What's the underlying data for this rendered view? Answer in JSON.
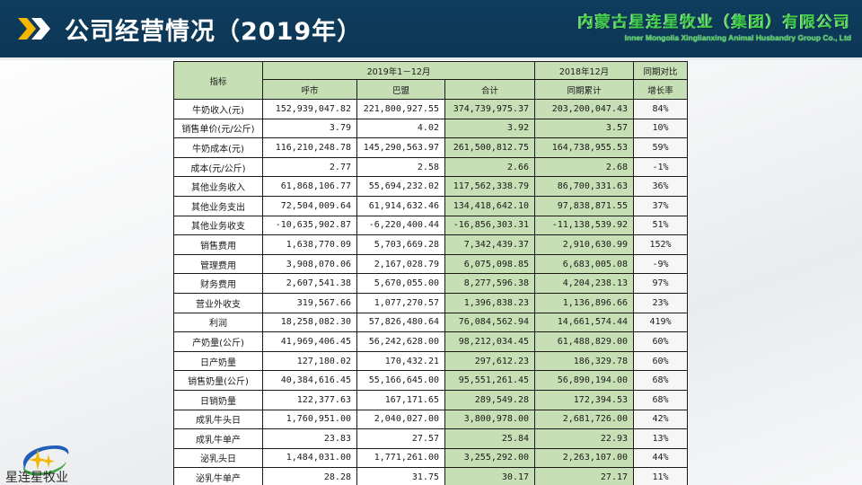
{
  "header": {
    "title": "公司经营情况（2019年）",
    "company_cn": "内蒙古星连星牧业（集团）有限公司",
    "company_en": "Inner Mongolia Xinglianxing Animal Husbandry Group Co., Ltd",
    "colors": {
      "background": "#0f3d5e",
      "accent_yellow": "#f5b800",
      "company_green": "#3ecb4a"
    }
  },
  "table": {
    "header_top": {
      "indicator": "指标",
      "period_2019": "2019年1－12月",
      "period_2018": "2018年12月",
      "yoy": "同期对比"
    },
    "header_sub": {
      "huhehaote": "呼市",
      "bameng": "巴盟",
      "total": "合计",
      "prior_cumulative": "同期累计",
      "growth_rate": "增长率"
    },
    "rows": [
      {
        "label": "牛奶收入(元)",
        "huhehaote": "152,939,047.82",
        "bameng": "221,800,927.55",
        "total": "374,739,975.37",
        "prior": "203,200,047.43",
        "growth": "84%"
      },
      {
        "label": "销售单价(元/公斤)",
        "huhehaote": "3.79",
        "bameng": "4.02",
        "total": "3.92",
        "prior": "3.57",
        "growth": "10%"
      },
      {
        "label": "牛奶成本(元)",
        "huhehaote": "116,210,248.78",
        "bameng": "145,290,563.97",
        "total": "261,500,812.75",
        "prior": "164,738,955.53",
        "growth": "59%"
      },
      {
        "label": "成本(元/公斤)",
        "huhehaote": "2.77",
        "bameng": "2.58",
        "total": "2.66",
        "prior": "2.68",
        "growth": "-1%"
      },
      {
        "label": "其他业务收入",
        "huhehaote": "61,868,106.77",
        "bameng": "55,694,232.02",
        "total": "117,562,338.79",
        "prior": "86,700,331.63",
        "growth": "36%"
      },
      {
        "label": "其他业务支出",
        "huhehaote": "72,504,009.64",
        "bameng": "61,914,632.46",
        "total": "134,418,642.10",
        "prior": "97,838,871.55",
        "growth": "37%"
      },
      {
        "label": "其他业务收支",
        "huhehaote": "-10,635,902.87",
        "bameng": "-6,220,400.44",
        "total": "-16,856,303.31",
        "prior": "-11,138,539.92",
        "growth": "51%"
      },
      {
        "label": "销售费用",
        "huhehaote": "1,638,770.09",
        "bameng": "5,703,669.28",
        "total": "7,342,439.37",
        "prior": "2,910,630.99",
        "growth": "152%"
      },
      {
        "label": "管理费用",
        "huhehaote": "3,908,070.06",
        "bameng": "2,167,028.79",
        "total": "6,075,098.85",
        "prior": "6,683,005.08",
        "growth": "-9%"
      },
      {
        "label": "财务费用",
        "huhehaote": "2,607,541.38",
        "bameng": "5,670,055.00",
        "total": "8,277,596.38",
        "prior": "4,204,238.13",
        "growth": "97%"
      },
      {
        "label": "营业外收支",
        "huhehaote": "319,567.66",
        "bameng": "1,077,270.57",
        "total": "1,396,838.23",
        "prior": "1,136,896.66",
        "growth": "23%"
      },
      {
        "label": "利润",
        "huhehaote": "18,258,082.30",
        "bameng": "57,826,480.64",
        "total": "76,084,562.94",
        "prior": "14,661,574.44",
        "growth": "419%"
      },
      {
        "label": "产奶量(公斤)",
        "huhehaote": "41,969,406.45",
        "bameng": "56,242,628.00",
        "total": "98,212,034.45",
        "prior": "61,488,829.00",
        "growth": "60%"
      },
      {
        "label": "日产奶量",
        "huhehaote": "127,180.02",
        "bameng": "170,432.21",
        "total": "297,612.23",
        "prior": "186,329.78",
        "growth": "60%"
      },
      {
        "label": "销售奶量(公斤)",
        "huhehaote": "40,384,616.45",
        "bameng": "55,166,645.00",
        "total": "95,551,261.45",
        "prior": "56,890,194.00",
        "growth": "68%"
      },
      {
        "label": "日销奶量",
        "huhehaote": "122,377.63",
        "bameng": "167,171.65",
        "total": "289,549.28",
        "prior": "172,394.53",
        "growth": "68%"
      },
      {
        "label": "成乳牛头日",
        "huhehaote": "1,760,951.00",
        "bameng": "2,040,027.00",
        "total": "3,800,978.00",
        "prior": "2,681,726.00",
        "growth": "42%"
      },
      {
        "label": "成乳牛单产",
        "huhehaote": "23.83",
        "bameng": "27.57",
        "total": "25.84",
        "prior": "22.93",
        "growth": "13%"
      },
      {
        "label": "泌乳头日",
        "huhehaote": "1,484,031.00",
        "bameng": "1,771,261.00",
        "total": "3,255,292.00",
        "prior": "2,263,107.00",
        "growth": "44%"
      },
      {
        "label": "泌乳牛单产",
        "huhehaote": "28.28",
        "bameng": "31.75",
        "total": "30.17",
        "prior": "27.17",
        "growth": "11%"
      }
    ],
    "colors": {
      "header_green": "#c6dfb4",
      "highlight_green": "#c6dfb4",
      "border": "#1a1a1a"
    }
  },
  "logo": {
    "text": "星连星牧业",
    "icon": "star-swoosh-logo-icon"
  }
}
